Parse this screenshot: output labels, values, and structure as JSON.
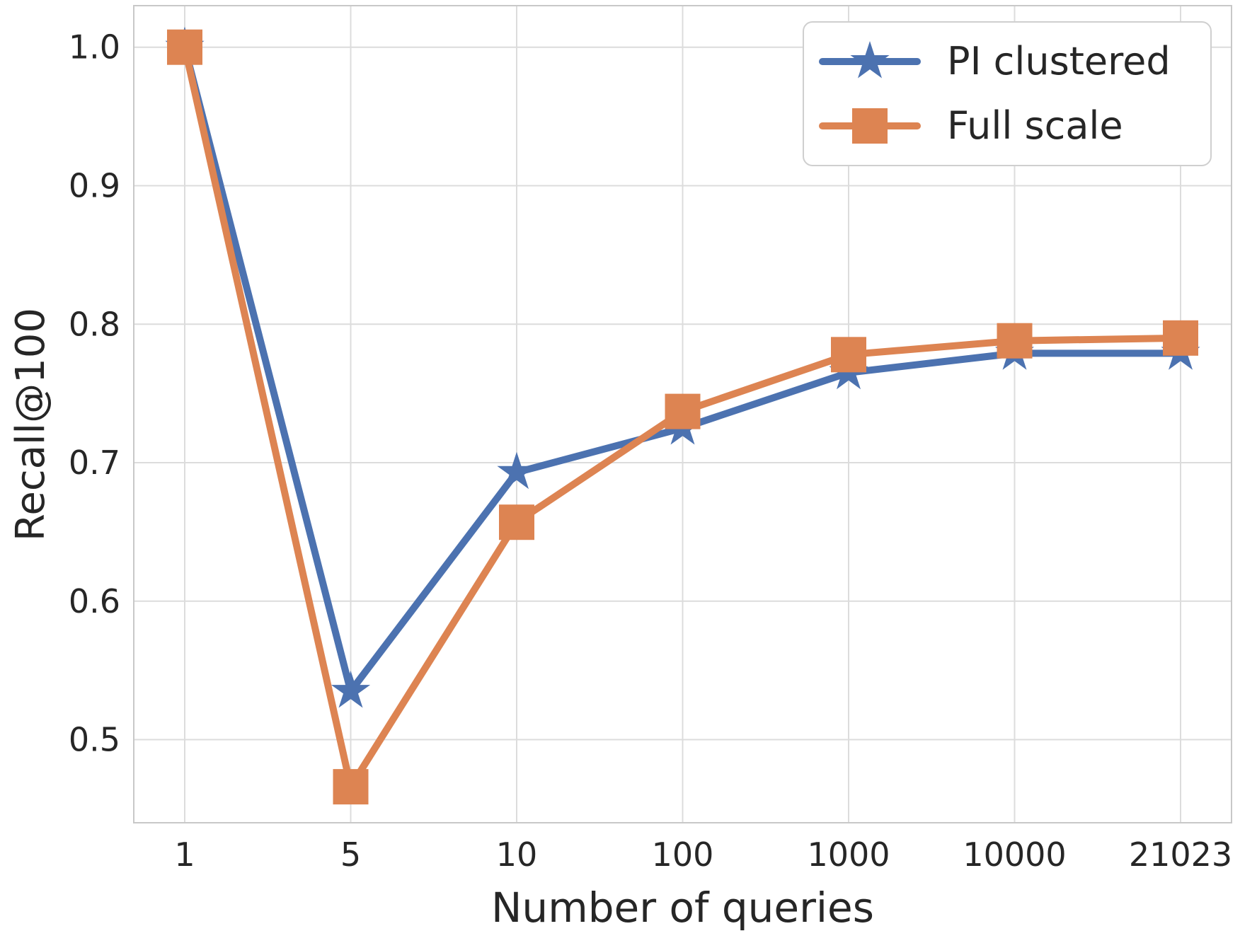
{
  "figure": {
    "background": "#ffffff",
    "text_color": "#262626",
    "grid_color": "#dcdcdc",
    "spine_color": "#c8c8c8"
  },
  "chart_data": {
    "type": "line",
    "title": "",
    "xlabel": "Number of queries",
    "ylabel": "Recall@100",
    "categories": [
      "1",
      "5",
      "10",
      "100",
      "1000",
      "10000",
      "21023"
    ],
    "x_spacing": "equal",
    "y_ticks": [
      1.0,
      0.9,
      0.8,
      0.7,
      0.6,
      0.5
    ],
    "ylim": [
      0.44,
      1.03
    ],
    "grid": true,
    "legend_position": "upper right",
    "series": [
      {
        "name": "PI clustered",
        "marker": "star",
        "color": "#4C72B0",
        "values": [
          1.0,
          0.535,
          0.693,
          0.725,
          0.765,
          0.779,
          0.779
        ]
      },
      {
        "name": "Full scale",
        "marker": "square",
        "color": "#DD8452",
        "values": [
          1.0,
          0.466,
          0.657,
          0.737,
          0.778,
          0.788,
          0.79
        ]
      }
    ]
  }
}
